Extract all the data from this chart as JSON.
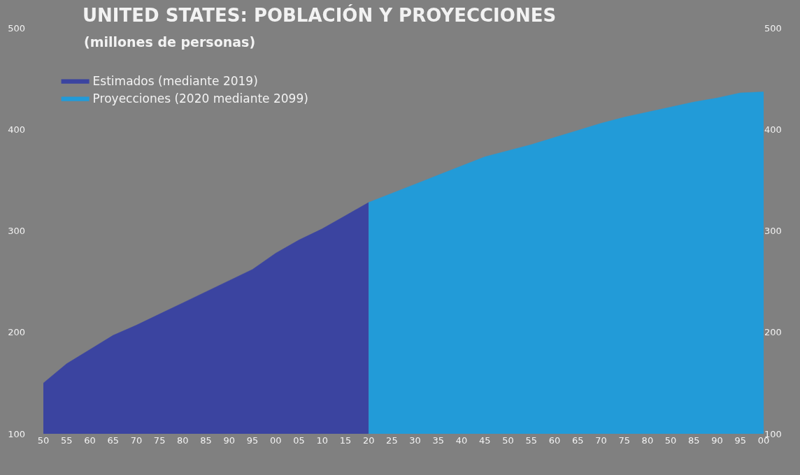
{
  "chart_data": {
    "type": "area",
    "title": "UNITED STATES: POBLACIÓN Y PROYECCIONES",
    "subtitle": "(millones de personas)",
    "categories": [
      "50",
      "55",
      "60",
      "65",
      "70",
      "75",
      "80",
      "85",
      "90",
      "95",
      "00",
      "05",
      "10",
      "15",
      "20",
      "25",
      "30",
      "35",
      "40",
      "45",
      "50",
      "55",
      "60",
      "65",
      "70",
      "75",
      "80",
      "50",
      "85",
      "90",
      "95",
      "00"
    ],
    "series": [
      {
        "name": "Estimados (mediante 2019)",
        "color": "#3b44a0",
        "values": [
          150,
          169,
          183,
          197,
          207,
          218,
          229,
          240,
          251,
          262,
          278,
          291,
          302,
          315,
          328,
          null,
          null,
          null,
          null,
          null,
          null,
          null,
          null,
          null,
          null,
          null,
          null,
          null,
          null,
          null,
          null,
          null
        ]
      },
      {
        "name": "Proyecciones (2020 mediante 2099)",
        "color": "#229bd8",
        "values": [
          null,
          null,
          null,
          null,
          null,
          null,
          null,
          null,
          null,
          null,
          null,
          null,
          null,
          null,
          328,
          337,
          346,
          355,
          364,
          373,
          379,
          385,
          392,
          399,
          406,
          412,
          417,
          422,
          427,
          431,
          436,
          437
        ]
      }
    ],
    "ylim": [
      100,
      500
    ],
    "yticks": [
      100,
      200,
      300,
      400,
      500
    ],
    "y2lim": [
      100,
      500
    ],
    "y2ticks": [
      100,
      200,
      300,
      400,
      500
    ],
    "grid": false,
    "legend": "top left"
  }
}
